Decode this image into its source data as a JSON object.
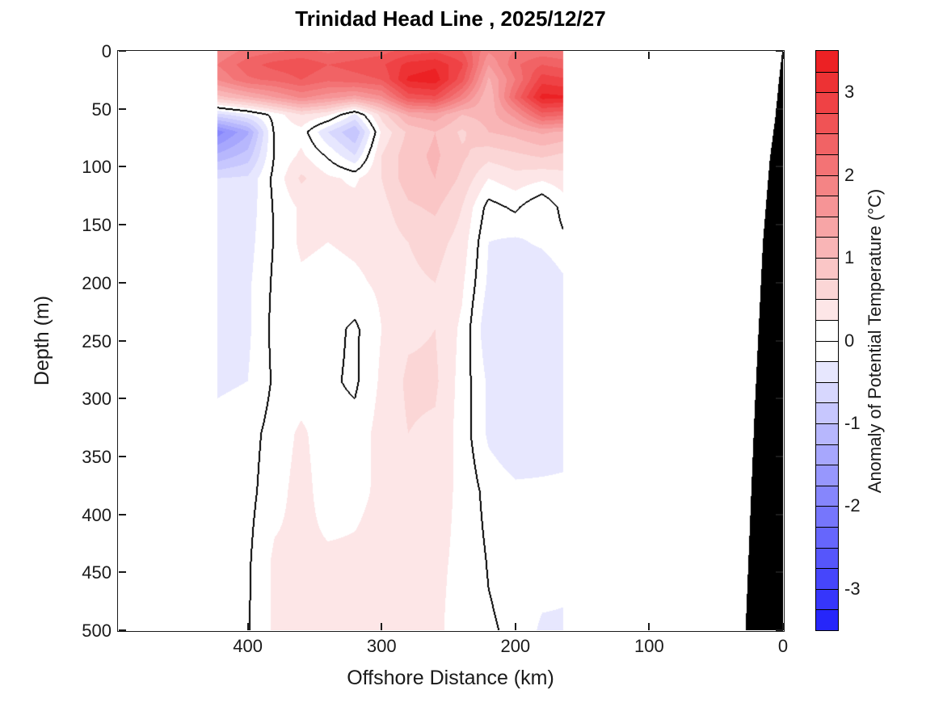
{
  "title": "Trinidad Head Line , 2025/12/27",
  "x_axis": {
    "label": "Offshore Distance (km)",
    "ticks": [
      400,
      300,
      200,
      100,
      0
    ],
    "range": [
      497,
      0
    ],
    "reversed": true
  },
  "y_axis": {
    "label": "Depth (m)",
    "ticks": [
      0,
      50,
      100,
      150,
      200,
      250,
      300,
      350,
      400,
      450,
      500
    ],
    "range": [
      0,
      500
    ]
  },
  "colorbar": {
    "label": "Anomaly of Potential Temperature (°C)",
    "ticks": [
      3,
      2,
      1,
      0,
      -1,
      -2,
      -3
    ],
    "range": [
      -3.5,
      3.5
    ],
    "step": 0.25,
    "n_segments": 28,
    "positive_max_color": "#eb191c",
    "negative_max_color": "#1e1efa",
    "zero_color": "#ffffff",
    "land_color": "#000000"
  },
  "chart_data": {
    "type": "heatmap",
    "title": "Trinidad Head Line , 2025/12/27",
    "xlabel": "Offshore Distance (km)",
    "ylabel": "Depth (m)",
    "legend": "Anomaly of Potential Temperature (°C)",
    "x_km": [
      423,
      400,
      380,
      360,
      340,
      320,
      300,
      280,
      260,
      240,
      220,
      200,
      180,
      164
    ],
    "depths_m": [
      0,
      12,
      25,
      40,
      55,
      70,
      90,
      110,
      135,
      165,
      200,
      240,
      285,
      330,
      380,
      440,
      500
    ],
    "values": [
      [
        1.75,
        2.1,
        2.2,
        2.3,
        2.2,
        2.3,
        2.4,
        2.6,
        2.7,
        2.5,
        1.8,
        2.0,
        2.1,
        2.0
      ],
      [
        2.0,
        2.4,
        2.6,
        2.7,
        2.5,
        2.6,
        2.7,
        3.1,
        3.2,
        2.8,
        1.5,
        2.2,
        2.5,
        2.4
      ],
      [
        1.75,
        2.2,
        2.3,
        2.5,
        2.3,
        2.4,
        2.5,
        3.3,
        3.4,
        2.6,
        1.2,
        2.0,
        2.9,
        2.8
      ],
      [
        0.9,
        1.2,
        1.5,
        1.8,
        1.6,
        1.4,
        1.7,
        2.6,
        2.7,
        1.9,
        1.0,
        2.3,
        3.35,
        3.3
      ],
      [
        -0.6,
        -0.3,
        0.1,
        0.5,
        0.3,
        -0.3,
        0.6,
        1.3,
        1.4,
        1.0,
        1.1,
        1.6,
        2.4,
        2.3
      ],
      [
        -1.9,
        -1.3,
        0.05,
        0.15,
        -0.5,
        -1.0,
        0.3,
        0.8,
        1.0,
        0.7,
        1.0,
        1.1,
        1.3,
        1.2
      ],
      [
        -1.2,
        -0.9,
        0.02,
        0.3,
        -0.05,
        -0.5,
        0.5,
        0.9,
        1.05,
        0.8,
        0.6,
        0.7,
        0.8,
        0.7
      ],
      [
        -0.5,
        -0.45,
        0.08,
        0.55,
        0.3,
        0.2,
        0.5,
        0.9,
        1.0,
        0.7,
        0.25,
        0.4,
        0.3,
        0.4
      ],
      [
        -0.5,
        -0.4,
        0.03,
        0.3,
        0.3,
        0.35,
        0.4,
        0.7,
        0.8,
        0.5,
        -0.1,
        0.05,
        -0.25,
        0.1
      ],
      [
        -0.45,
        -0.35,
        0.02,
        0.3,
        0.25,
        0.3,
        0.35,
        0.5,
        0.6,
        0.4,
        -0.25,
        -0.3,
        -0.2,
        -0.05
      ],
      [
        -0.4,
        -0.3,
        0.05,
        0.2,
        0.15,
        0.2,
        0.3,
        0.45,
        0.5,
        0.3,
        -0.3,
        -0.45,
        -0.5,
        -0.3
      ],
      [
        -0.35,
        -0.3,
        0.08,
        0.15,
        0.1,
        -0.05,
        0.25,
        0.45,
        0.5,
        0.2,
        -0.45,
        -0.4,
        -0.35,
        -0.3
      ],
      [
        -0.3,
        -0.25,
        0.04,
        0.1,
        0.05,
        -0.05,
        0.3,
        0.55,
        0.55,
        0.15,
        -0.3,
        -0.35,
        -0.3,
        -0.3
      ],
      [
        -0.15,
        -0.1,
        0.1,
        0.3,
        0.1,
        0.1,
        0.35,
        0.5,
        0.45,
        0.15,
        -0.3,
        -0.45,
        -0.4,
        -0.35
      ],
      [
        -0.05,
        -0.08,
        0.15,
        0.35,
        0.12,
        0.18,
        0.3,
        0.35,
        0.35,
        0.2,
        -0.1,
        -0.2,
        -0.2,
        -0.2
      ],
      [
        -0.03,
        -0.04,
        0.3,
        0.3,
        0.3,
        0.3,
        0.35,
        0.3,
        0.3,
        0.2,
        -0.02,
        -0.1,
        -0.1,
        -0.15
      ],
      [
        -0.02,
        -0.02,
        0.3,
        0.3,
        0.3,
        0.3,
        0.3,
        0.3,
        0.3,
        0.15,
        0.03,
        -0.05,
        -0.3,
        -0.3
      ]
    ],
    "zero_contour_level": 0,
    "bathymetry_profile_depth_km": [
      [
        0,
        0.6
      ],
      [
        25,
        3
      ],
      [
        55,
        5.5
      ],
      [
        95,
        10
      ],
      [
        165,
        15
      ],
      [
        305,
        21
      ],
      [
        500,
        28
      ]
    ],
    "grid": false,
    "legend_position": "right"
  }
}
